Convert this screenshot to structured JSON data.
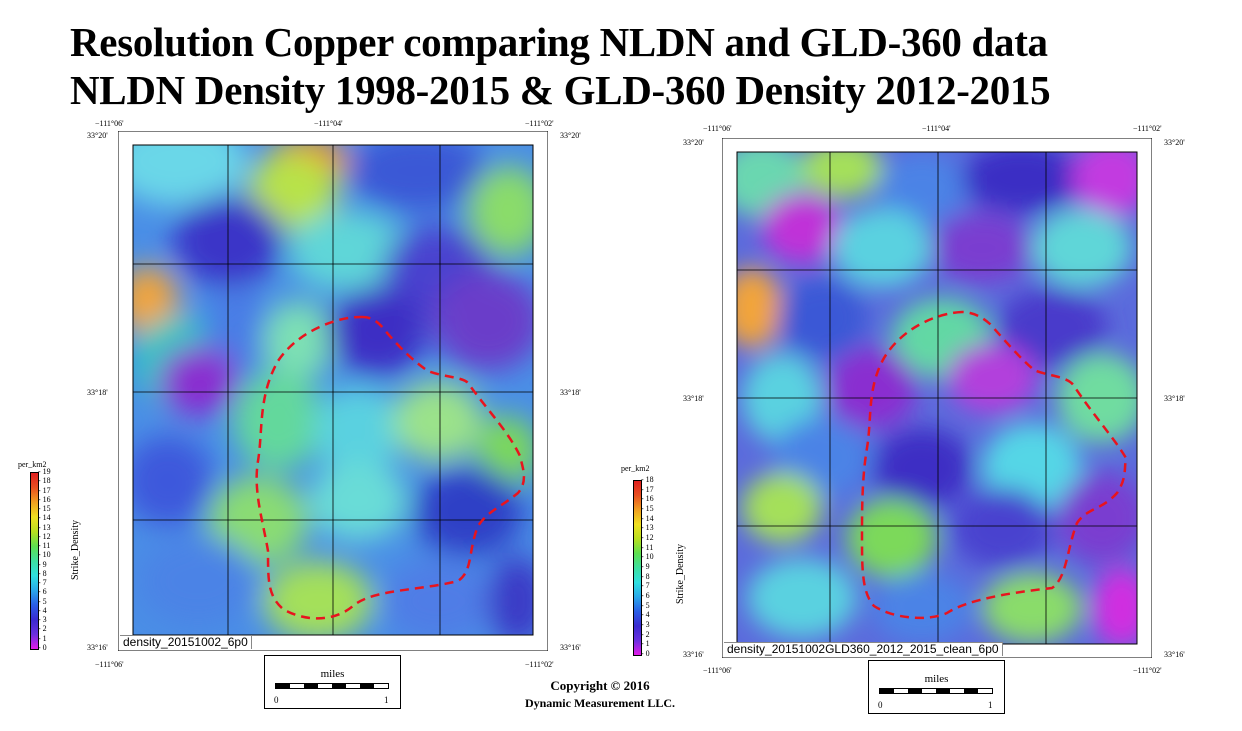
{
  "title": {
    "line1": "Resolution Copper comparing NLDN and GLD-360 data",
    "line2": "NLDN Density 1998-2015   &   GLD-360 Density 2012-2015"
  },
  "panels": [
    {
      "id": "nldn",
      "top_labels": [
        "−111°06'",
        "−111°04'",
        "−111°02'"
      ],
      "bottom_labels": [
        "−111°06'",
        "−111°02'"
      ],
      "left_labels": [
        "33°20'",
        "33°18'",
        "33°16'"
      ],
      "right_labels": [
        "33°20'",
        "33°18'",
        "33°16'"
      ],
      "footer": "density_20151002_6p0",
      "colorbar": {
        "unit": "per_km2",
        "label": "Strike_Density",
        "ticks": [
          19,
          18,
          17,
          16,
          15,
          14,
          13,
          12,
          11,
          10,
          9,
          8,
          7,
          6,
          5,
          4,
          3,
          2,
          1,
          0
        ]
      },
      "density_level": "higher"
    },
    {
      "id": "gld360",
      "top_labels": [
        "−111°06'",
        "−111°04'",
        "−111°02'"
      ],
      "bottom_labels": [
        "−111°06'",
        "−111°02'"
      ],
      "left_labels": [
        "33°20'",
        "33°18'",
        "33°16'"
      ],
      "right_labels": [
        "33°20'",
        "33°18'",
        "33°16'"
      ],
      "footer": "density_20151002GLD360_2012_2015_clean_6p0",
      "colorbar": {
        "unit": "per_km2",
        "label": "Strike_Density",
        "ticks": [
          18,
          17,
          16,
          15,
          14,
          13,
          12,
          11,
          10,
          9,
          8,
          7,
          6,
          5,
          4,
          3,
          2,
          1,
          0
        ]
      },
      "density_level": "lower"
    }
  ],
  "scalebar": {
    "unit": "miles",
    "start": "0",
    "end": "1"
  },
  "copyright": {
    "line1": "Copyright  © 2016",
    "line2": "Dynamic Measurement LLC."
  },
  "colors": {
    "boundary": "#e8141e",
    "gridline": "#000000"
  }
}
